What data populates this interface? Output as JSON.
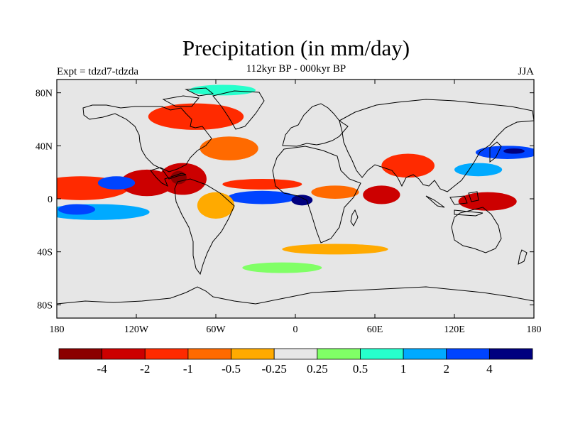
{
  "title": "Precipitation (in mm/day)",
  "subtitle": "112kyr BP - 000kyr BP",
  "experiment": "Expt = tdzd7-tdzda",
  "season": "JJA",
  "map": {
    "projection": "cylindrical-equidistant",
    "background_color": "#e6e6e6",
    "lon_range": [
      -180,
      180
    ],
    "lat_range": [
      -90,
      90
    ],
    "lat_ticks": [
      {
        "value": 80,
        "label": "80N"
      },
      {
        "value": 40,
        "label": "40N"
      },
      {
        "value": 0,
        "label": "0"
      },
      {
        "value": -40,
        "label": "40S"
      },
      {
        "value": -80,
        "label": "80S"
      }
    ],
    "lon_ticks": [
      {
        "value": -180,
        "label": "180"
      },
      {
        "value": -120,
        "label": "120W"
      },
      {
        "value": -60,
        "label": "60W"
      },
      {
        "value": 0,
        "label": "0"
      },
      {
        "value": 60,
        "label": "60E"
      },
      {
        "value": 120,
        "label": "120E"
      },
      {
        "value": 180,
        "label": "180"
      }
    ]
  },
  "colorbar": {
    "colors": [
      "#8b0000",
      "#cc0000",
      "#ff2a00",
      "#ff6a00",
      "#ffaa00",
      "#e6e6e6",
      "#80ff66",
      "#26ffcc",
      "#00aaff",
      "#0044ff",
      "#00007f"
    ],
    "labels": [
      "-4",
      "-2",
      "-1",
      "-0.5",
      "-0.25",
      "0.25",
      "0.5",
      "1",
      "2",
      "4"
    ]
  },
  "features": [
    {
      "name": "itcz-pacific-drier",
      "color": "#ff2a00",
      "lon": -162,
      "lat": 8,
      "w": 36,
      "h": 9
    },
    {
      "name": "itcz-pacific-dry-core",
      "color": "#cc0000",
      "lon": -112,
      "lat": 12,
      "w": 20,
      "h": 10
    },
    {
      "name": "pacific-itcz-wetter",
      "color": "#0044ff",
      "lon": -135,
      "lat": 12,
      "w": 14,
      "h": 5
    },
    {
      "name": "s-pacific-wet-band",
      "color": "#00aaff",
      "lon": -150,
      "lat": -10,
      "w": 40,
      "h": 6
    },
    {
      "name": "s-pacific-wet-core",
      "color": "#0044ff",
      "lon": -165,
      "lat": -8,
      "w": 14,
      "h": 4
    },
    {
      "name": "caribbean-dry",
      "color": "#cc0000",
      "lon": -85,
      "lat": 15,
      "w": 18,
      "h": 12
    },
    {
      "name": "caribbean-dry-core",
      "color": "#8b0000",
      "lon": -88,
      "lat": 16,
      "w": 6,
      "h": 5
    },
    {
      "name": "atlantic-itcz-wetter",
      "color": "#0044ff",
      "lon": -25,
      "lat": 1,
      "w": 26,
      "h": 5
    },
    {
      "name": "atlantic-itcz-core",
      "color": "#00007f",
      "lon": 5,
      "lat": -1,
      "w": 8,
      "h": 4
    },
    {
      "name": "atlantic-drier-north",
      "color": "#ff2a00",
      "lon": -25,
      "lat": 11,
      "w": 30,
      "h": 4
    },
    {
      "name": "north-atlantic-dry",
      "color": "#ff6a00",
      "lon": -50,
      "lat": 38,
      "w": 22,
      "h": 9
    },
    {
      "name": "canada-dry",
      "color": "#ff2a00",
      "lon": -75,
      "lat": 62,
      "w": 36,
      "h": 10
    },
    {
      "name": "arctic-wet",
      "color": "#26ffcc",
      "lon": -55,
      "lat": 82,
      "w": 25,
      "h": 4
    },
    {
      "name": "south-america-dry",
      "color": "#ffaa00",
      "lon": -60,
      "lat": -5,
      "w": 14,
      "h": 10
    },
    {
      "name": "africa-dry",
      "color": "#ff6a00",
      "lon": 30,
      "lat": 5,
      "w": 18,
      "h": 5
    },
    {
      "name": "indian-ocean-dry",
      "color": "#cc0000",
      "lon": 65,
      "lat": 3,
      "w": 14,
      "h": 7
    },
    {
      "name": "india-dry",
      "color": "#ff2a00",
      "lon": 85,
      "lat": 25,
      "w": 20,
      "h": 9
    },
    {
      "name": "east-asia-wet",
      "color": "#0044ff",
      "lon": 160,
      "lat": 35,
      "w": 24,
      "h": 5
    },
    {
      "name": "east-asia-wet-core",
      "color": "#00007f",
      "lon": 165,
      "lat": 36,
      "w": 8,
      "h": 2
    },
    {
      "name": "west-pacific-wet",
      "color": "#00aaff",
      "lon": 138,
      "lat": 22,
      "w": 18,
      "h": 5
    },
    {
      "name": "maritime-dry",
      "color": "#cc0000",
      "lon": 145,
      "lat": -2,
      "w": 22,
      "h": 7
    },
    {
      "name": "southern-ocean-dry",
      "color": "#ffaa00",
      "lon": 30,
      "lat": -38,
      "w": 40,
      "h": 4
    },
    {
      "name": "southern-ocean-wet",
      "color": "#80ff66",
      "lon": -10,
      "lat": -52,
      "w": 30,
      "h": 4
    }
  ]
}
